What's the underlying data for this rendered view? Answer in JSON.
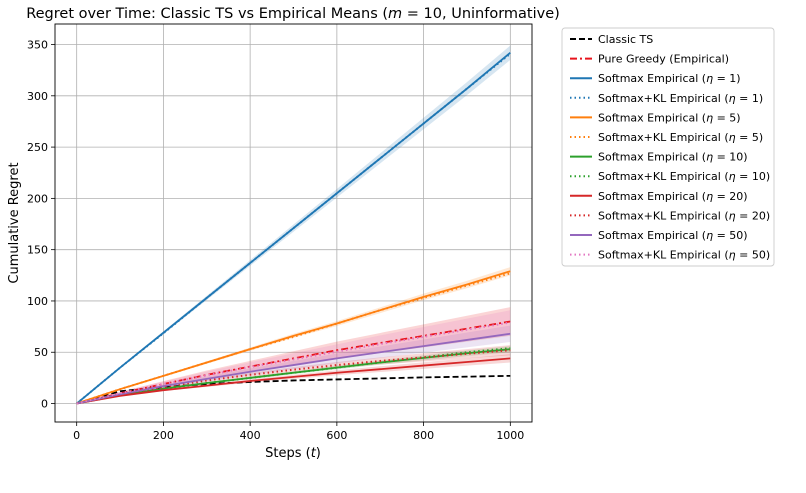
{
  "chart_data": {
    "type": "line",
    "title": "Regret over Time: Classic TS vs Empirical Means (m = 10, Uninformative)",
    "title_parts": [
      "Regret over Time: Classic TS vs Empirical Means (",
      "m",
      " = 10, Uninformative)"
    ],
    "xlabel_parts": [
      "Steps (",
      "t",
      ")"
    ],
    "ylabel": "Cumulative Regret",
    "xlim": [
      -50,
      1050
    ],
    "ylim": [
      -18,
      370
    ],
    "xticks": [
      0,
      200,
      400,
      600,
      800,
      1000
    ],
    "yticks": [
      0,
      50,
      100,
      150,
      200,
      250,
      300,
      350
    ],
    "grid": true,
    "legend_position": "outside-right",
    "x": [
      0,
      100,
      200,
      300,
      400,
      500,
      600,
      700,
      800,
      900,
      1000
    ],
    "series": [
      {
        "name": "Classic TS",
        "color": "#000000",
        "style": "dashed",
        "values": [
          0,
          12,
          16,
          19,
          21,
          22.5,
          23.5,
          24.5,
          25.5,
          26.2,
          27
        ],
        "band": null
      },
      {
        "name": "Pure Greedy (Empirical)",
        "color": "#e8141c",
        "style": "dashdot",
        "values": [
          0,
          10,
          19,
          28,
          36,
          44,
          52,
          59,
          66,
          73,
          80
        ],
        "band": 14
      },
      {
        "name": "Softmax Empirical (η = 1)",
        "name_parts": [
          "Softmax Empirical (",
          "η",
          " = 1)"
        ],
        "color": "#1f77b4",
        "style": "solid",
        "values": [
          0,
          35,
          69,
          103,
          137,
          171,
          205,
          239,
          273,
          307,
          342
        ],
        "band": 7
      },
      {
        "name": "Softmax+KL Empirical (η = 1)",
        "name_parts": [
          "Softmax+KL Empirical (",
          "η",
          " = 1)"
        ],
        "color": "#1f77b4",
        "style": "dotted",
        "values": [
          0,
          35,
          68.5,
          103,
          137,
          171,
          205,
          239,
          273,
          307,
          341
        ],
        "band": null
      },
      {
        "name": "Softmax Empirical (η = 5)",
        "name_parts": [
          "Softmax Empirical (",
          "η",
          " = 5)"
        ],
        "color": "#ff7f0e",
        "style": "solid",
        "values": [
          0,
          14,
          27,
          40,
          53,
          66,
          78,
          91,
          104,
          116,
          129
        ],
        "band": 4
      },
      {
        "name": "Softmax+KL Empirical (η = 5)",
        "name_parts": [
          "Softmax+KL Empirical (",
          "η",
          " = 5)"
        ],
        "color": "#ff7f0e",
        "style": "dotted",
        "values": [
          0,
          14,
          27,
          40,
          53,
          65,
          78,
          91,
          103,
          115,
          127
        ],
        "band": null
      },
      {
        "name": "Softmax Empirical (η = 10)",
        "name_parts": [
          "Softmax Empirical (",
          "η",
          " = 10)"
        ],
        "color": "#2ca02c",
        "style": "solid",
        "values": [
          0,
          8,
          14.5,
          20,
          25,
          30,
          35,
          40,
          44.5,
          49,
          53
        ],
        "band": 3
      },
      {
        "name": "Softmax+KL Empirical (η = 10)",
        "name_parts": [
          "Softmax+KL Empirical (",
          "η",
          " = 10)"
        ],
        "color": "#2ca02c",
        "style": "dotted",
        "values": [
          0,
          8,
          14.5,
          20,
          25,
          30,
          35,
          40,
          45,
          50,
          54
        ],
        "band": null
      },
      {
        "name": "Softmax Empirical (η = 20)",
        "name_parts": [
          "Softmax Empirical (",
          "η",
          " = 20)"
        ],
        "color": "#d62728",
        "style": "solid",
        "values": [
          0,
          7.5,
          13,
          17.5,
          22,
          26,
          30,
          33.5,
          37,
          40.5,
          44
        ],
        "band": 4
      },
      {
        "name": "Softmax+KL Empirical (η = 20)",
        "name_parts": [
          "Softmax+KL Empirical (",
          "η",
          " = 20)"
        ],
        "color": "#d62728",
        "style": "dotted",
        "values": [
          0,
          9,
          16,
          22.5,
          28,
          33,
          37.5,
          41.5,
          45,
          48.5,
          52
        ],
        "band": 5
      },
      {
        "name": "Softmax Empirical (η = 50)",
        "name_parts": [
          "Softmax Empirical (",
          "η",
          " = 50)"
        ],
        "color": "#9467bd",
        "style": "solid",
        "values": [
          0,
          9,
          17,
          24,
          31,
          37.5,
          44,
          50,
          56,
          62,
          68
        ],
        "band": 8
      },
      {
        "name": "Softmax+KL Empirical (η = 50)",
        "name_parts": [
          "Softmax+KL Empirical (",
          "η",
          " = 50)"
        ],
        "color": "#e377c2",
        "style": "dotted",
        "values": [
          0,
          10,
          19,
          27.5,
          35.5,
          43,
          50.5,
          58,
          65,
          72,
          79
        ],
        "band": 12
      }
    ]
  }
}
